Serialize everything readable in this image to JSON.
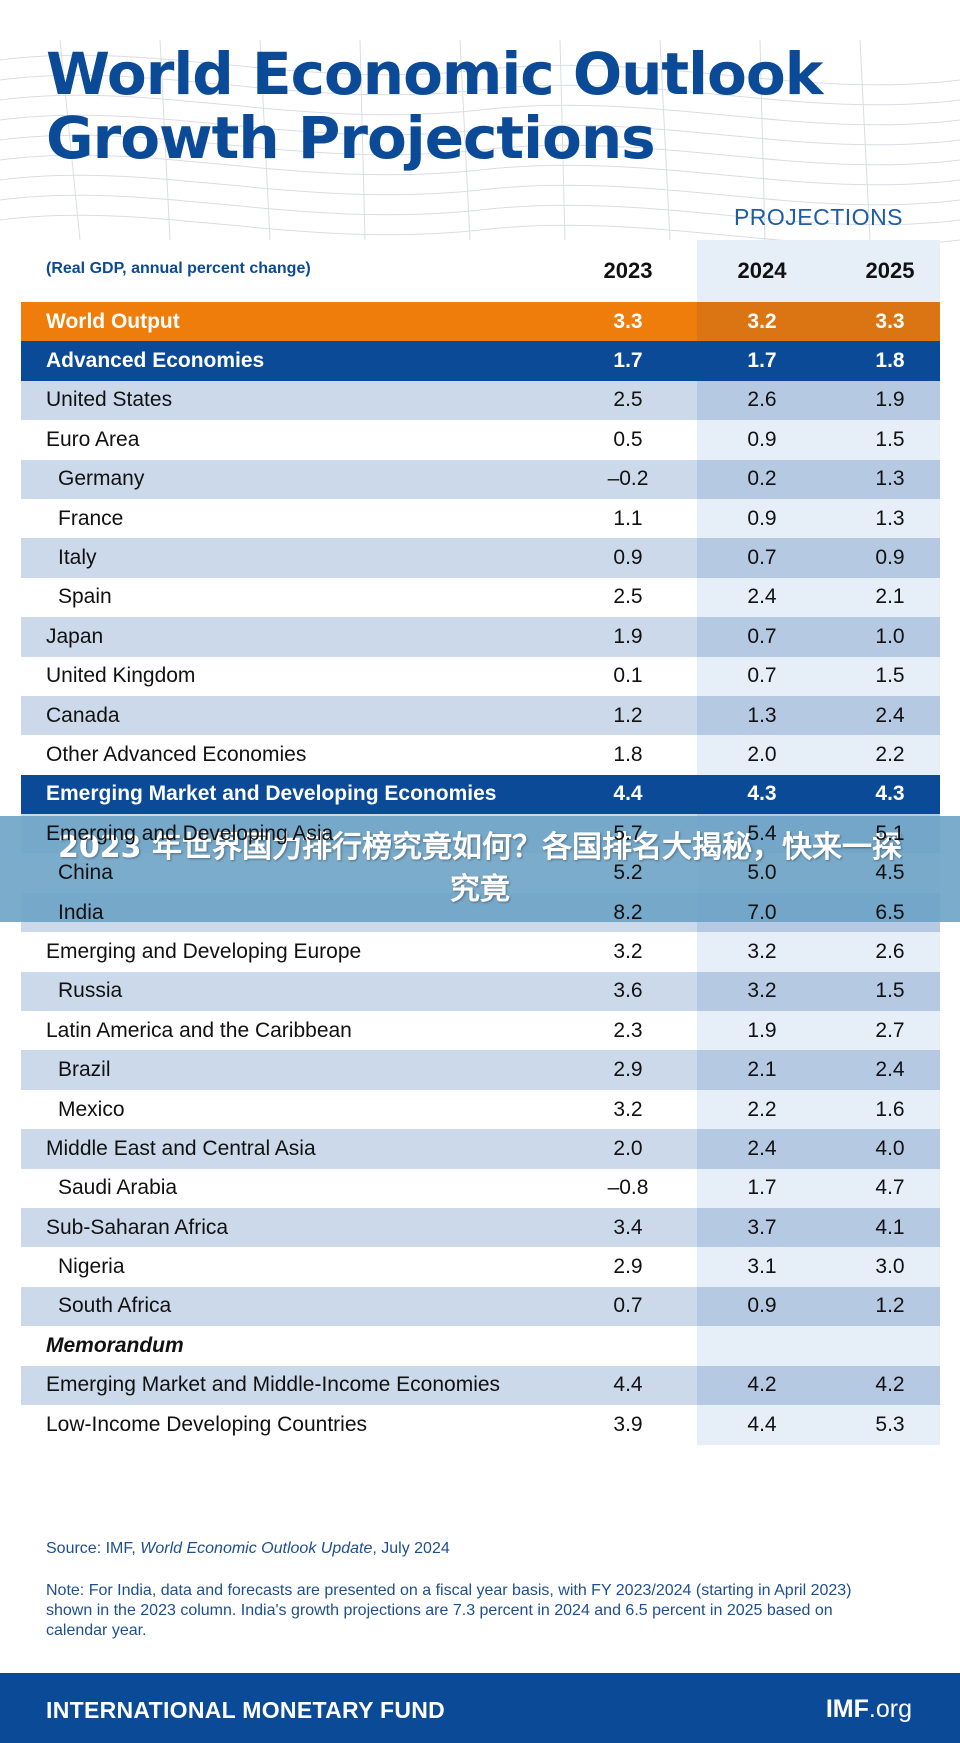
{
  "title_line1": "World Economic Outlook",
  "title_line2": "Growth Projections",
  "projections_label": "PROJECTIONS",
  "units_label": "(Real GDP, annual percent change)",
  "years": [
    "2023",
    "2024",
    "2025"
  ],
  "rows": [
    {
      "label": "World Output",
      "values": [
        "3.3",
        "3.2",
        "3.3"
      ]
    },
    {
      "label": "Advanced Economies",
      "values": [
        "1.7",
        "1.7",
        "1.8"
      ]
    },
    {
      "label": "United States",
      "values": [
        "2.5",
        "2.6",
        "1.9"
      ]
    },
    {
      "label": "Euro Area",
      "values": [
        "0.5",
        "0.9",
        "1.5"
      ]
    },
    {
      "label": "Germany",
      "values": [
        "–0.2",
        "0.2",
        "1.3"
      ]
    },
    {
      "label": "France",
      "values": [
        "1.1",
        "0.9",
        "1.3"
      ]
    },
    {
      "label": "Italy",
      "values": [
        "0.9",
        "0.7",
        "0.9"
      ]
    },
    {
      "label": "Spain",
      "values": [
        "2.5",
        "2.4",
        "2.1"
      ]
    },
    {
      "label": "Japan",
      "values": [
        "1.9",
        "0.7",
        "1.0"
      ]
    },
    {
      "label": "United Kingdom",
      "values": [
        "0.1",
        "0.7",
        "1.5"
      ]
    },
    {
      "label": "Canada",
      "values": [
        "1.2",
        "1.3",
        "2.4"
      ]
    },
    {
      "label": "Other Advanced Economies",
      "values": [
        "1.8",
        "2.0",
        "2.2"
      ]
    },
    {
      "label": "Emerging Market and Developing Economies",
      "values": [
        "4.4",
        "4.3",
        "4.3"
      ]
    },
    {
      "label": "Emerging and Developing Asia",
      "values": [
        "5.7",
        "5.4",
        "5.1"
      ]
    },
    {
      "label": "China",
      "values": [
        "5.2",
        "5.0",
        "4.5"
      ]
    },
    {
      "label": "India",
      "values": [
        "8.2",
        "7.0",
        "6.5"
      ]
    },
    {
      "label": "Emerging and Developing Europe",
      "values": [
        "3.2",
        "3.2",
        "2.6"
      ]
    },
    {
      "label": "Russia",
      "values": [
        "3.6",
        "3.2",
        "1.5"
      ]
    },
    {
      "label": "Latin America and the Caribbean",
      "values": [
        "2.3",
        "1.9",
        "2.7"
      ]
    },
    {
      "label": "Brazil",
      "values": [
        "2.9",
        "2.1",
        "2.4"
      ]
    },
    {
      "label": "Mexico",
      "values": [
        "3.2",
        "2.2",
        "1.6"
      ]
    },
    {
      "label": "Middle East and Central Asia",
      "values": [
        "2.0",
        "2.4",
        "4.0"
      ]
    },
    {
      "label": "Saudi Arabia",
      "values": [
        "–0.8",
        "1.7",
        "4.7"
      ]
    },
    {
      "label": "Sub-Saharan Africa",
      "values": [
        "3.4",
        "3.7",
        "4.1"
      ]
    },
    {
      "label": "Nigeria",
      "values": [
        "2.9",
        "3.1",
        "3.0"
      ]
    },
    {
      "label": "South Africa",
      "values": [
        "0.7",
        "0.9",
        "1.2"
      ]
    },
    {
      "label": "Memorandum",
      "values": [
        "",
        "",
        ""
      ]
    },
    {
      "label": "Emerging Market and Middle-Income Economies",
      "values": [
        "4.4",
        "4.2",
        "4.2"
      ]
    },
    {
      "label": "Low-Income Developing Countries",
      "values": [
        "3.9",
        "4.4",
        "5.3"
      ]
    }
  ],
  "overlay_title": "2023 年世界国力排行榜究竟如何？各国排名大揭秘，快来一探究竟",
  "source_prefix": "Source: IMF, ",
  "source_title": "World Economic Outlook Update",
  "source_suffix": ", July 2024",
  "note": "Note: For India, data and forecasts are presented on a fiscal year basis, with FY 2023/2024 (starting in April 2023) shown in the 2023 column. India's growth projections are 7.3 percent in 2024 and 6.5 percent in 2025 based on calendar year.",
  "footer_org": "INTERNATIONAL MONETARY FUND",
  "footer_url_bold": "IMF",
  "footer_url_rest": ".org",
  "colors": {
    "brand_blue": "#0b4a96",
    "world_orange": "#ef7d0c",
    "band": "#cbd9ea"
  }
}
